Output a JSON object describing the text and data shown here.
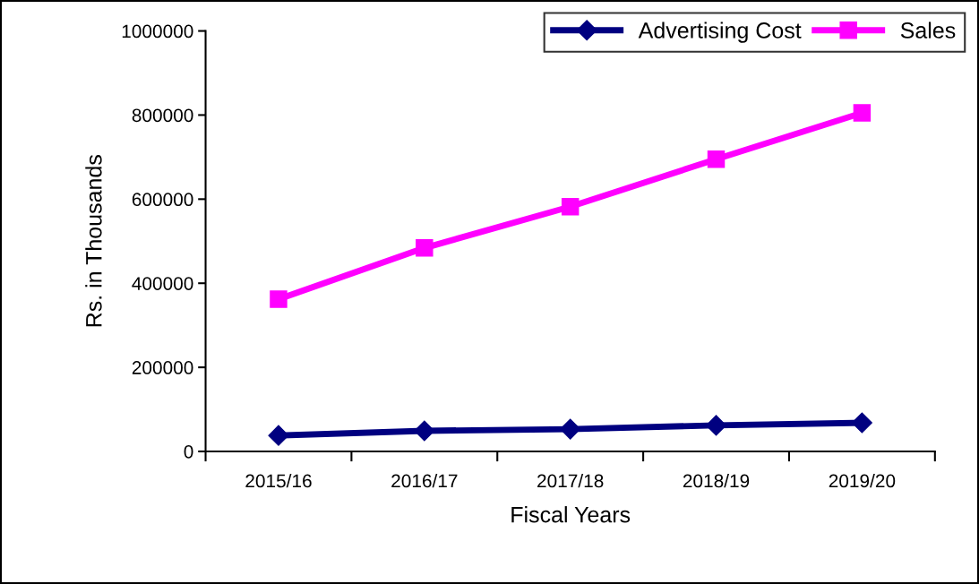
{
  "chart_data": {
    "type": "line",
    "xlabel": "Fiscal Years",
    "ylabel": "Rs. in Thousands",
    "categories": [
      "2015/16",
      "2016/17",
      "2017/18",
      "2018/19",
      "2019/20"
    ],
    "series": [
      {
        "name": "Advertising Cost",
        "color": "#000080",
        "marker": "diamond",
        "values": [
          38000,
          49000,
          53000,
          62000,
          68000
        ]
      },
      {
        "name": "Sales",
        "color": "#ff00ff",
        "marker": "square",
        "values": [
          362000,
          484000,
          582000,
          695000,
          805000
        ]
      }
    ],
    "ylim": [
      0,
      1000000
    ],
    "yticks": [
      0,
      200000,
      400000,
      600000,
      800000,
      1000000
    ],
    "grid": false,
    "legend": "top right",
    "line_style": "solid"
  }
}
